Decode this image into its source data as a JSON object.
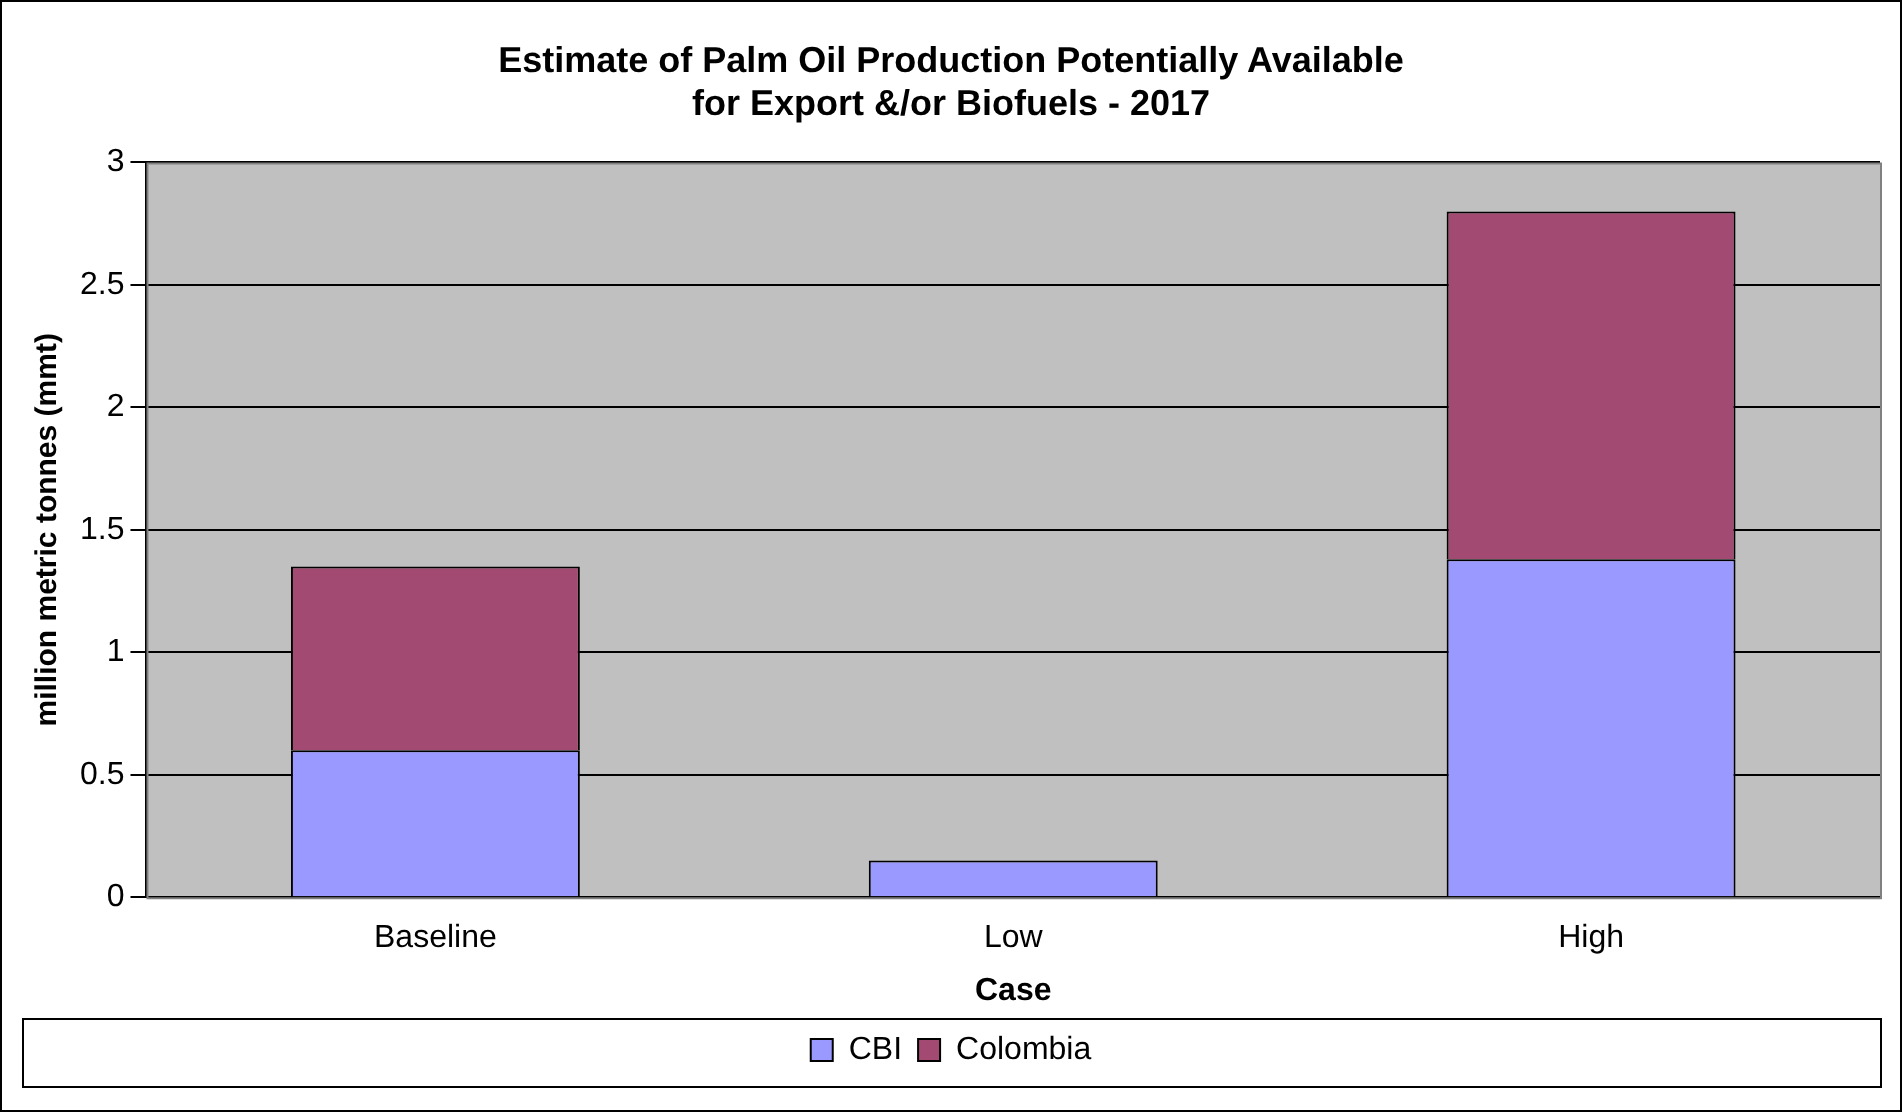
{
  "chart_data": {
    "type": "bar",
    "title": "Estimate of Palm Oil Production Potentially Available for Export &/or Biofuels - 2017",
    "xlabel": "Case",
    "ylabel": "million metric tonnes (mmt)",
    "categories": [
      "Baseline",
      "Low",
      "High"
    ],
    "stacked": true,
    "series": [
      {
        "name": "CBI",
        "color": "#9999ff",
        "values": [
          0.6,
          0.15,
          1.38
        ]
      },
      {
        "name": "Colombia",
        "color": "#a34a72",
        "values": [
          0.75,
          0,
          1.42
        ]
      }
    ],
    "ylim": [
      0,
      3
    ],
    "yticks": [
      0,
      0.5,
      1,
      1.5,
      2,
      2.5,
      3
    ],
    "grid": "y",
    "legend": "bottom"
  }
}
